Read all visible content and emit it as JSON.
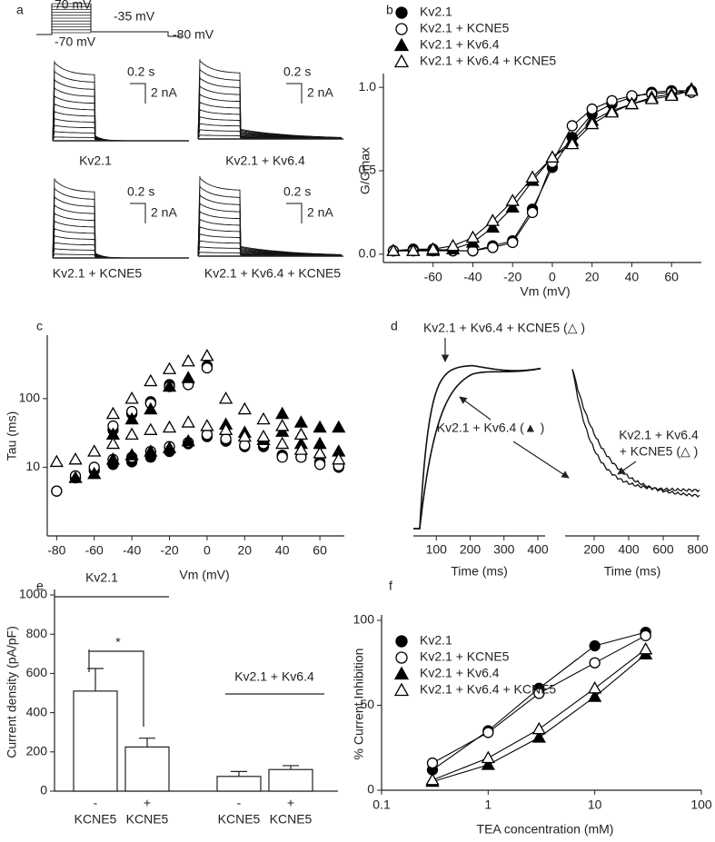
{
  "panel_a": {
    "label": "a",
    "protocol": {
      "labels": [
        "70 mV",
        "-35 mV",
        "-70 mV",
        "-80 mV"
      ]
    },
    "scale_time": "0.2 s",
    "scale_current": "2 nA",
    "traces": [
      "Kv2.1",
      "Kv2.1 + Kv6.4",
      "Kv2.1 + KCNE5",
      "Kv2.1 + Kv6.4 + KCNE5"
    ]
  },
  "panel_d": {
    "label": "d",
    "x_label": "Time (ms)",
    "annotations": [
      "Kv2.1 + Kv6.4 + KCNE5 (△ )",
      "Kv2.1 + Kv6.4 (▲ )",
      "Kv2.1 + Kv6.4",
      "+ KCNE5 (△ )"
    ],
    "axes": [
      {
        "xlim": [
          0,
          400
        ],
        "ticks": [
          100,
          200,
          300,
          400
        ]
      },
      {
        "xlim": [
          0,
          800
        ],
        "ticks": [
          200,
          400,
          600,
          800
        ]
      }
    ]
  },
  "chart_data": [
    {
      "label": "b",
      "type": "scatter",
      "lines": true,
      "legend": "top-left",
      "x_label": "Vm (mV)",
      "y_label": "G/Gmax",
      "x": [
        -80,
        -70,
        -60,
        -50,
        -40,
        -30,
        -20,
        -10,
        0,
        10,
        20,
        30,
        40,
        50,
        60,
        70
      ],
      "xlim": [
        -85,
        75
      ],
      "xticks": [
        -60,
        -40,
        -20,
        0,
        20,
        40,
        60
      ],
      "ylim": [
        -0.05,
        1.05
      ],
      "yticks": [
        {
          "value": 0,
          "label": "0.0"
        },
        {
          "value": 0.5,
          "label": "0.5"
        },
        {
          "value": 1,
          "label": "1.0"
        }
      ],
      "series": [
        {
          "name": "Kv2.1",
          "color": "#000000",
          "marker": "circle",
          "filled": true,
          "values": [
            0.02,
            0.03,
            0.03,
            0.02,
            0.02,
            0.05,
            0.08,
            0.27,
            0.52,
            0.7,
            0.84,
            0.9,
            0.94,
            0.97,
            0.98,
            0.98
          ]
        },
        {
          "name": "Kv2.1 + KCNE5",
          "color": "#000000",
          "marker": "circle",
          "filled": false,
          "values": [
            0.02,
            0.02,
            0.02,
            0.02,
            0.02,
            0.04,
            0.07,
            0.25,
            0.55,
            0.77,
            0.87,
            0.92,
            0.95,
            0.96,
            0.97,
            0.97
          ]
        },
        {
          "name": "Kv2.1 + Kv6.4",
          "color": "#000000",
          "marker": "triangle",
          "filled": true,
          "values": [
            0.02,
            0.02,
            0.02,
            0.03,
            0.07,
            0.16,
            0.28,
            0.44,
            0.58,
            0.68,
            0.8,
            0.86,
            0.9,
            0.94,
            0.96,
            0.99
          ]
        },
        {
          "name": "Kv2.1 + Kv6.4 + KCNE5",
          "color": "#000000",
          "marker": "triangle",
          "filled": false,
          "values": [
            0.02,
            0.02,
            0.03,
            0.05,
            0.1,
            0.2,
            0.32,
            0.46,
            0.58,
            0.66,
            0.78,
            0.85,
            0.9,
            0.93,
            0.95,
            0.98
          ]
        }
      ]
    },
    {
      "label": "c",
      "type": "scatter",
      "lines": false,
      "yscale": "log",
      "x_label": "Vm (mV)",
      "y_label": "Tau (ms)",
      "x": [
        -80,
        -70,
        -60,
        -50,
        -40,
        -30,
        -20,
        -10,
        0,
        10,
        20,
        30,
        40,
        50,
        60,
        70
      ],
      "xlim": [
        -85,
        73
      ],
      "xticks": [
        -80,
        -60,
        -40,
        -20,
        0,
        20,
        40,
        60
      ],
      "ylim": [
        1,
        700
      ],
      "yticks": [
        10,
        100
      ],
      "series": [
        {
          "color": "#000000",
          "marker": "circle",
          "filled": true,
          "values": [
            4.5,
            7,
            9,
            11,
            12,
            14,
            17,
            22,
            28,
            24,
            20,
            20,
            15,
            14,
            12,
            10
          ]
        },
        {
          "color": "#000000",
          "marker": "circle",
          "filled": true,
          "values": [
            null,
            null,
            null,
            35,
            60,
            90,
            160,
            170,
            300,
            null,
            null,
            null,
            null,
            null,
            null,
            null
          ]
        },
        {
          "color": "#000000",
          "marker": "circle",
          "filled": false,
          "values": [
            4.5,
            7.5,
            10,
            13,
            14,
            17,
            20,
            23,
            30,
            26,
            21,
            22,
            14,
            14,
            11,
            10.5
          ]
        },
        {
          "color": "#000000",
          "marker": "circle",
          "filled": false,
          "values": [
            null,
            null,
            null,
            40,
            65,
            85,
            150,
            160,
            280,
            null,
            null,
            null,
            null,
            null,
            null,
            null
          ]
        },
        {
          "color": "#000000",
          "marker": "triangle",
          "filled": true,
          "values": [
            null,
            7,
            8,
            13,
            15,
            17,
            19,
            24,
            null,
            42,
            32,
            25,
            33,
            22,
            22,
            17
          ]
        },
        {
          "color": "#000000",
          "marker": "triangle",
          "filled": true,
          "values": [
            null,
            null,
            null,
            30,
            50,
            70,
            150,
            200,
            null,
            null,
            null,
            null,
            60,
            45,
            38,
            38
          ]
        },
        {
          "color": "#000000",
          "marker": "triangle",
          "filled": false,
          "values": [
            12,
            13,
            17,
            22,
            30,
            35,
            38,
            45,
            40,
            35,
            28,
            28,
            22,
            18,
            16,
            13
          ]
        },
        {
          "color": "#000000",
          "marker": "triangle",
          "filled": false,
          "values": [
            null,
            null,
            null,
            60,
            100,
            180,
            270,
            350,
            420,
            100,
            70,
            50,
            40,
            30,
            null,
            null
          ]
        }
      ]
    },
    {
      "label": "e",
      "type": "bar",
      "y_label": "Current density (pA/pF)",
      "color": "#ffffff",
      "categories": [
        [
          "-",
          "KCNE5"
        ],
        [
          "+",
          "KCNE5"
        ],
        [
          "-",
          "KCNE5"
        ],
        [
          "+",
          "KCNE5"
        ]
      ],
      "values": [
        510,
        225,
        75,
        110
      ],
      "errors": [
        115,
        45,
        25,
        20
      ],
      "group_labels": [
        "Kv2.1",
        "Kv2.1 + Kv6.4"
      ],
      "significance": "*",
      "ylim": [
        0,
        1000
      ],
      "yticks": [
        0,
        200,
        400,
        600,
        800,
        1000
      ]
    },
    {
      "label": "f",
      "type": "scatter",
      "lines": true,
      "legend": "top-left",
      "xscale": "log",
      "x_label": "TEA concentration (mM)",
      "y_label": "% Current Inhibition",
      "x": [
        0.3,
        1,
        3,
        10,
        30
      ],
      "xlim": [
        0.1,
        100
      ],
      "xticks": [
        0.1,
        1,
        10,
        100
      ],
      "ylim": [
        0,
        100
      ],
      "yticks": [
        0,
        50,
        100
      ],
      "series": [
        {
          "name": "Kv2.1",
          "color": "#000000",
          "marker": "circle",
          "filled": true,
          "values": [
            12,
            35,
            60,
            85,
            93
          ]
        },
        {
          "name": "Kv2.1 + KCNE5",
          "color": "#000000",
          "marker": "circle",
          "filled": false,
          "values": [
            16,
            34,
            57,
            75,
            91
          ]
        },
        {
          "name": "Kv2.1 + Kv6.4",
          "color": "#000000",
          "marker": "triangle",
          "filled": true,
          "values": [
            5,
            15,
            31,
            55,
            80
          ]
        },
        {
          "name": "Kv2.1 + Kv6.4 + KCNE5",
          "color": "#000000",
          "marker": "triangle",
          "filled": false,
          "values": [
            6,
            19,
            36,
            60,
            83
          ]
        }
      ]
    }
  ]
}
